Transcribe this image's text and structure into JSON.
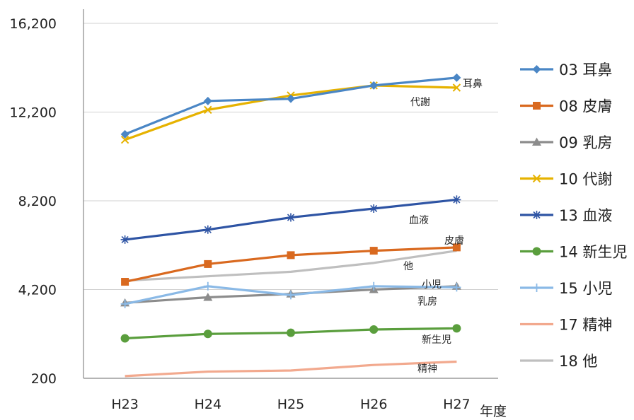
{
  "chart_data": {
    "type": "line",
    "title": "",
    "xlabel": "年度",
    "ylabel": "",
    "categories": [
      "H23",
      "H24",
      "H25",
      "H26",
      "H27"
    ],
    "y_ticks": [
      "16,200",
      "12,200",
      "8,200",
      "4,200",
      "200"
    ],
    "y_tick_values": [
      16200,
      12200,
      8200,
      4200,
      200
    ],
    "ylim": [
      200,
      16200
    ],
    "grid": "horizontal",
    "legend_position": "right",
    "series": [
      {
        "name": "03 耳鼻",
        "color": "#4a86c5",
        "marker": "diamond",
        "end_label": "耳鼻",
        "values": [
          11200,
          12700,
          12800,
          13400,
          13750
        ]
      },
      {
        "name": "08 皮膚",
        "color": "#d9691f",
        "marker": "square",
        "end_label": "皮膚",
        "values": [
          4550,
          5350,
          5750,
          5950,
          6100
        ]
      },
      {
        "name": "09 乳房",
        "color": "#8c8c8c",
        "marker": "triangle",
        "end_label": "乳房",
        "values": [
          3600,
          3850,
          4000,
          4200,
          4350
        ]
      },
      {
        "name": "10 代謝",
        "color": "#e6b200",
        "marker": "x",
        "end_label": "代謝",
        "values": [
          10950,
          12300,
          12950,
          13400,
          13300
        ]
      },
      {
        "name": "13 血液",
        "color": "#2e54a4",
        "marker": "asterisk",
        "end_label": "血液",
        "values": [
          6450,
          6900,
          7450,
          7850,
          8250
        ]
      },
      {
        "name": "14 新生児",
        "color": "#5a9e3d",
        "marker": "circle",
        "end_label": "新生児",
        "values": [
          2000,
          2200,
          2250,
          2400,
          2450
        ]
      },
      {
        "name": "15 小児",
        "color": "#8ab9e6",
        "marker": "plus",
        "end_label": "小児",
        "values": [
          3550,
          4350,
          3950,
          4350,
          4300
        ]
      },
      {
        "name": "17 精神",
        "color": "#f2a98e",
        "marker": "none",
        "end_label": "精神",
        "values": [
          300,
          500,
          550,
          800,
          950
        ]
      },
      {
        "name": "18 他",
        "color": "#bfbfbf",
        "marker": "none",
        "end_label": "他",
        "values": [
          4600,
          4800,
          5000,
          5400,
          5950
        ]
      }
    ]
  }
}
